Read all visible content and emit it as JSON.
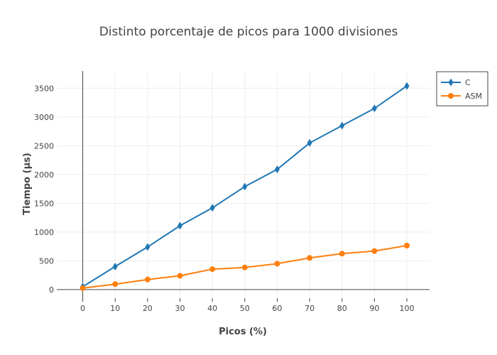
{
  "chart_data": {
    "type": "line",
    "title": "Distinto porcentaje de picos para 1000 divisiones",
    "xlabel": "Picos (%)",
    "ylabel": "Tiempo (µs)",
    "xlim": [
      -8,
      107
    ],
    "ylim": [
      -150,
      3800
    ],
    "xticks": [
      0,
      10,
      20,
      30,
      40,
      50,
      60,
      70,
      80,
      90,
      100
    ],
    "yticks": [
      0,
      500,
      1000,
      1500,
      2000,
      2500,
      3000,
      3500
    ],
    "grid": true,
    "legend_position": "top-right",
    "x": [
      0,
      10,
      20,
      30,
      40,
      50,
      60,
      70,
      80,
      90,
      100
    ],
    "series": [
      {
        "name": "C",
        "color": "#1f77b4",
        "marker": "diamond",
        "values": [
          50,
          400,
          740,
          1110,
          1420,
          1790,
          2090,
          2550,
          2850,
          3150,
          3540
        ]
      },
      {
        "name": "ASM",
        "color": "#ff7f0e",
        "marker": "circle",
        "values": [
          25,
          95,
          175,
          240,
          355,
          385,
          450,
          550,
          625,
          670,
          765
        ]
      }
    ]
  }
}
